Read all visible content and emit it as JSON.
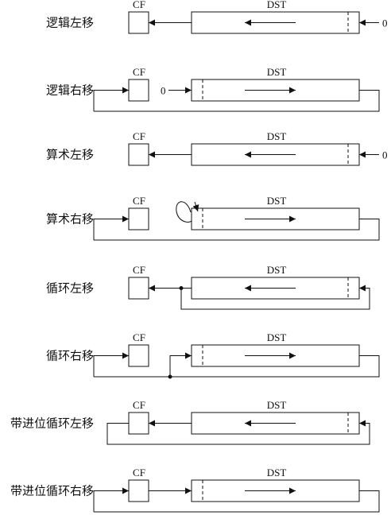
{
  "colors": {
    "ink": "#111111",
    "background": "#ffffff"
  },
  "register_labels": {
    "carry": "CF",
    "destination": "DST"
  },
  "fill_bit": "0",
  "operations": [
    {
      "label": "逻辑左移",
      "type": "shl"
    },
    {
      "label": "逻辑右移",
      "type": "shr"
    },
    {
      "label": "算术左移",
      "type": "sal"
    },
    {
      "label": "算术右移",
      "type": "sar"
    },
    {
      "label": "循环左移",
      "type": "rol"
    },
    {
      "label": "循环右移",
      "type": "ror"
    },
    {
      "label": "带进位循环左移",
      "type": "rcl"
    },
    {
      "label": "带进位循环右移",
      "type": "rcr"
    }
  ]
}
